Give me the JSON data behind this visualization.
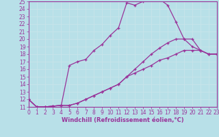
{
  "xlabel": "Windchill (Refroidissement éolien,°C)",
  "xlim": [
    0,
    23
  ],
  "ylim": [
    11,
    25
  ],
  "xtick_vals": [
    0,
    1,
    2,
    3,
    4,
    5,
    6,
    7,
    8,
    9,
    10,
    11,
    12,
    13,
    14,
    15,
    16,
    17,
    18,
    19,
    20,
    21,
    22,
    23
  ],
  "ytick_vals": [
    11,
    12,
    13,
    14,
    15,
    16,
    17,
    18,
    19,
    20,
    21,
    22,
    23,
    24,
    25
  ],
  "bg_color": "#b8e0e8",
  "grid_color": "#d0eef4",
  "line_color": "#993399",
  "curves": [
    {
      "x": [
        0,
        1,
        2,
        3,
        4,
        5,
        6,
        7,
        8,
        9,
        10,
        11,
        12,
        13,
        14,
        15,
        16,
        17,
        18,
        19,
        20,
        21,
        22,
        23
      ],
      "y": [
        12.0,
        11.0,
        11.0,
        11.1,
        11.2,
        16.5,
        17.0,
        17.3,
        18.5,
        19.3,
        20.5,
        21.5,
        24.8,
        24.5,
        25.0,
        25.2,
        25.3,
        24.5,
        22.3,
        20.0,
        19.0,
        18.5,
        18.0,
        18.0
      ]
    },
    {
      "x": [
        0,
        1,
        2,
        3,
        4,
        5,
        6,
        7,
        8,
        9,
        10,
        11,
        12,
        13,
        14,
        15,
        16,
        17,
        18,
        19,
        20,
        21,
        22,
        23
      ],
      "y": [
        12.0,
        11.0,
        11.0,
        11.1,
        11.2,
        11.2,
        11.5,
        12.0,
        12.5,
        13.0,
        13.5,
        14.0,
        15.0,
        16.0,
        17.0,
        18.0,
        18.8,
        19.5,
        20.0,
        20.0,
        20.0,
        18.5,
        18.0,
        18.0
      ]
    },
    {
      "x": [
        0,
        1,
        2,
        3,
        4,
        5,
        6,
        7,
        8,
        9,
        10,
        11,
        12,
        13,
        14,
        15,
        16,
        17,
        18,
        19,
        20,
        21,
        22,
        23
      ],
      "y": [
        12.0,
        11.0,
        11.0,
        11.1,
        11.2,
        11.2,
        11.5,
        12.0,
        12.5,
        13.0,
        13.5,
        14.0,
        15.0,
        15.5,
        16.0,
        16.5,
        17.2,
        17.5,
        18.0,
        18.5,
        18.5,
        18.5,
        18.0,
        18.0
      ]
    }
  ],
  "tick_fontsize": 5.5,
  "xlabel_fontsize": 6,
  "marker": "+",
  "markersize": 3.5,
  "linewidth": 0.9
}
